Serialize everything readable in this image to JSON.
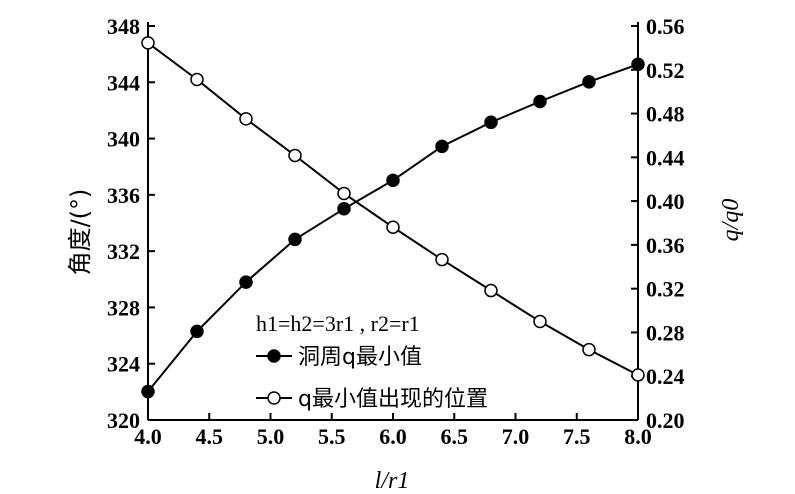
{
  "chart_data": {
    "type": "line",
    "xlabel": "l/r1",
    "ylabel_left": "角度/(°)",
    "ylabel_right": "q/q0",
    "xlim": [
      4.0,
      8.0
    ],
    "ylim_left": [
      320,
      348
    ],
    "ylim_right": [
      0.2,
      0.56
    ],
    "x_ticks": [
      "4.0",
      "4.5",
      "5.0",
      "5.5",
      "6.0",
      "6.5",
      "7.0",
      "7.5",
      "8.0"
    ],
    "y_left_ticks": [
      "320",
      "324",
      "328",
      "332",
      "336",
      "340",
      "344",
      "348"
    ],
    "y_right_ticks": [
      "0.20",
      "0.24",
      "0.28",
      "0.32",
      "0.36",
      "0.40",
      "0.44",
      "0.48",
      "0.52",
      "0.56"
    ],
    "annotation": "h1=h2=3r1 , r2=r1",
    "legend_position": "lower-center",
    "grid": false,
    "series": [
      {
        "name": "洞周q最小值",
        "axis": "right",
        "marker": "filled-circle",
        "x": [
          4.0,
          4.4,
          4.8,
          5.2,
          5.6,
          6.0,
          6.4,
          6.8,
          7.2,
          7.6,
          8.0
        ],
        "values": [
          0.226,
          0.281,
          0.326,
          0.365,
          0.393,
          0.419,
          0.45,
          0.472,
          0.491,
          0.509,
          0.525
        ]
      },
      {
        "name": "q最小值出现的位置",
        "axis": "left",
        "marker": "open-circle",
        "x": [
          4.0,
          4.4,
          4.8,
          5.2,
          5.6,
          6.0,
          6.4,
          6.8,
          7.2,
          7.6,
          8.0
        ],
        "values": [
          346.8,
          344.2,
          341.4,
          338.8,
          336.1,
          333.7,
          331.4,
          329.2,
          327.0,
          325.0,
          323.2
        ]
      }
    ]
  }
}
